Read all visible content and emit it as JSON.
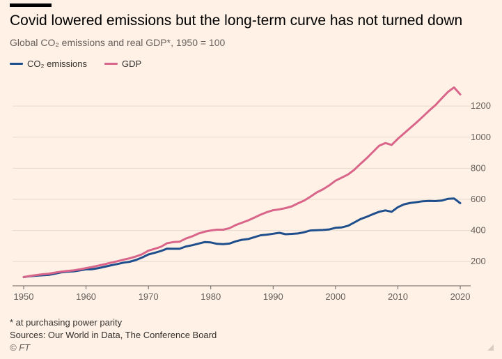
{
  "header": {
    "title": "Covid lowered emissions but the long-term curve has not turned down",
    "subtitle": "Global CO₂ emissions and real GDP*, 1950 = 100"
  },
  "footer": {
    "footnote": "* at purchasing power parity",
    "sources": "Sources: Our World in Data, The Conference Board",
    "credit": "© FT"
  },
  "colors": {
    "background": "#fff1e5",
    "co2": "#1f4e8c",
    "gdp": "#d9668a",
    "grid": "#e6d9ce",
    "axis": "#66605c"
  },
  "chart_data": {
    "type": "line",
    "title": "Covid lowered emissions but the long-term curve has not turned down",
    "subtitle": "Global CO₂ emissions and real GDP*, 1950 = 100",
    "xlim": [
      1950,
      2021
    ],
    "ylim": [
      80,
      1380
    ],
    "x_ticks": [
      1950,
      1960,
      1970,
      1980,
      1990,
      2000,
      2010,
      2020
    ],
    "y_ticks": [
      200,
      400,
      600,
      800,
      1000,
      1200
    ],
    "y_axis_position": "right",
    "grid": "horizontal",
    "legend_position": "top-left",
    "x": [
      1950,
      1951,
      1952,
      1953,
      1954,
      1955,
      1956,
      1957,
      1958,
      1959,
      1960,
      1961,
      1962,
      1963,
      1964,
      1965,
      1966,
      1967,
      1968,
      1969,
      1970,
      1971,
      1972,
      1973,
      1974,
      1975,
      1976,
      1977,
      1978,
      1979,
      1980,
      1981,
      1982,
      1983,
      1984,
      1985,
      1986,
      1987,
      1988,
      1989,
      1990,
      1991,
      1992,
      1993,
      1994,
      1995,
      1996,
      1997,
      1998,
      1999,
      2000,
      2001,
      2002,
      2003,
      2004,
      2005,
      2006,
      2007,
      2008,
      2009,
      2010,
      2011,
      2012,
      2013,
      2014,
      2015,
      2016,
      2017,
      2018,
      2019,
      2020
    ],
    "series": [
      {
        "name": "CO₂ emissions",
        "color": "#1f4e8c",
        "values": [
          100,
          106,
          109,
          112,
          114,
          122,
          130,
          135,
          137,
          143,
          150,
          151,
          158,
          167,
          176,
          184,
          193,
          199,
          210,
          226,
          246,
          256,
          268,
          283,
          282,
          282,
          297,
          305,
          315,
          325,
          323,
          314,
          312,
          316,
          330,
          340,
          345,
          357,
          369,
          373,
          379,
          385,
          376,
          378,
          381,
          389,
          400,
          402,
          403,
          407,
          417,
          420,
          430,
          451,
          473,
          488,
          505,
          520,
          529,
          520,
          550,
          568,
          577,
          582,
          588,
          590,
          589,
          592,
          603,
          606,
          576
        ]
      },
      {
        "name": "GDP",
        "color": "#d9668a",
        "values": [
          100,
          108,
          113,
          118,
          122,
          129,
          135,
          140,
          143,
          150,
          158,
          165,
          174,
          183,
          193,
          202,
          212,
          221,
          233,
          247,
          270,
          282,
          295,
          318,
          325,
          328,
          348,
          362,
          380,
          392,
          400,
          405,
          405,
          415,
          435,
          450,
          465,
          483,
          502,
          518,
          530,
          536,
          544,
          555,
          575,
          593,
          618,
          645,
          665,
          690,
          720,
          740,
          760,
          790,
          828,
          865,
          905,
          945,
          962,
          950,
          990,
          1025,
          1060,
          1095,
          1132,
          1170,
          1205,
          1248,
          1290,
          1320,
          1275
        ]
      }
    ]
  }
}
